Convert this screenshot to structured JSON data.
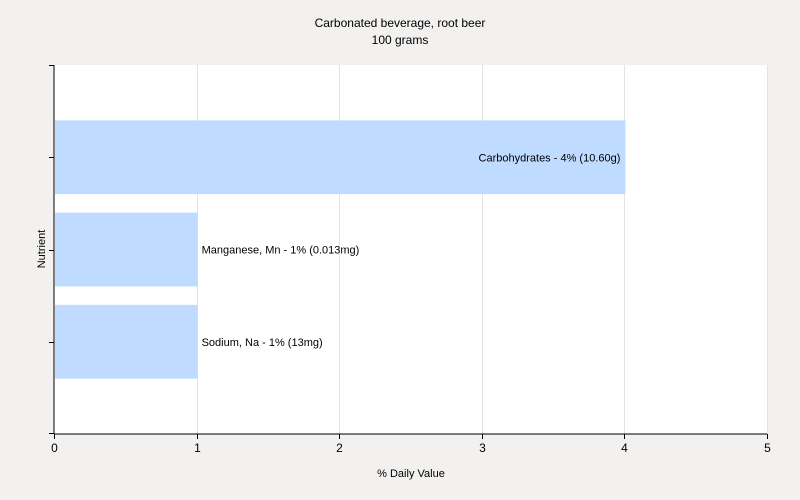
{
  "chart_data": {
    "type": "bar",
    "orientation": "horizontal",
    "title": "Carbonated beverage, root beer",
    "subtitle": "100 grams",
    "xlabel": "% Daily Value",
    "ylabel": "Nutrient",
    "xlim": [
      0,
      5
    ],
    "xticks": [
      "0",
      "1",
      "2",
      "3",
      "4",
      "5"
    ],
    "grid": true,
    "categories": [
      "Carbohydrates",
      "Manganese, Mn",
      "Sodium, Na"
    ],
    "values": [
      4,
      1,
      1
    ],
    "labels": [
      "Carbohydrates - 4% (10.60g)",
      "Manganese, Mn - 1% (0.013mg)",
      "Sodium, Na - 1% (13mg)"
    ],
    "colors": {
      "bar": "#bfdbff",
      "plot_background": "#ffffff",
      "page_background": "#f2f1f0",
      "grid": "#e4e4e4",
      "axis": "#000000"
    }
  }
}
